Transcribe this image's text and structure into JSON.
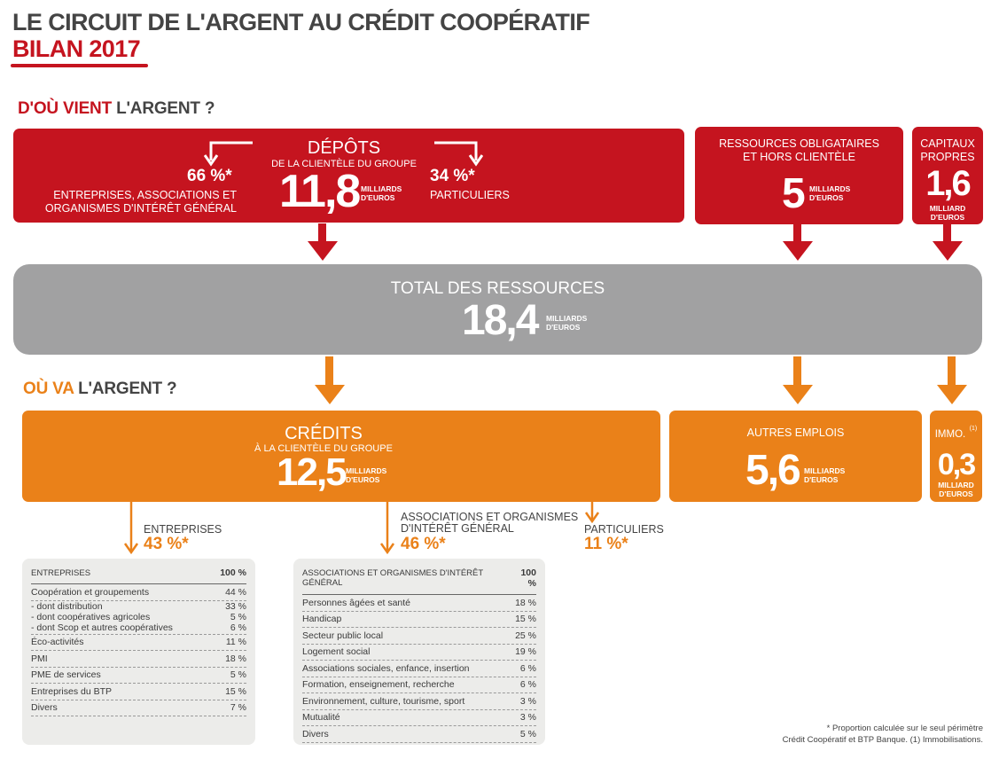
{
  "header": {
    "title": "LE CIRCUIT DE L'ARGENT AU CRÉDIT COOPÉRATIF",
    "subtitle": "BILAN 2017"
  },
  "sources_section": {
    "prefix": "D'OÙ VIENT",
    "suffix": "L'ARGENT ?"
  },
  "uses_section": {
    "prefix": "OÙ VA",
    "suffix": "L'ARGENT ?"
  },
  "deposits": {
    "title": "DÉPÔTS",
    "subtitle": "DE LA CLIENTÈLE DU GROUPE",
    "value": "11,8",
    "unit1": "MILLIARDS",
    "unit2": "D'EUROS",
    "left_pct": "66 %*",
    "left_line1": "ENTREPRISES, ASSOCIATIONS ET",
    "left_line2": "ORGANISMES D'INTÉRÊT GÉNÉRAL",
    "right_pct": "34 %*",
    "right_label": "PARTICULIERS"
  },
  "bond_resources": {
    "line1": "RESSOURCES OBLIGATAIRES",
    "line2": "ET HORS CLIENTÈLE",
    "value": "5",
    "unit1": "MILLIARDS",
    "unit2": "D'EUROS"
  },
  "equity": {
    "line1": "CAPITAUX",
    "line2": "PROPRES",
    "value": "1,6",
    "unit1": "MILLIARD",
    "unit2": "D'EUROS"
  },
  "total": {
    "label": "TOTAL DES RESSOURCES",
    "value": "18,4",
    "unit1": "MILLIARDS",
    "unit2": "D'EUROS"
  },
  "credits": {
    "title": "CRÉDITS",
    "subtitle": "À LA CLIENTÈLE DU GROUPE",
    "value": "12,5",
    "unit1": "MILLIARDS",
    "unit2": "D'EUROS"
  },
  "other_uses": {
    "label": "AUTRES EMPLOIS",
    "value": "5,6",
    "unit1": "MILLIARDS",
    "unit2": "D'EUROS"
  },
  "fixed_assets": {
    "label": "IMMO.",
    "note": "(1)",
    "value": "0,3",
    "unit1": "MILLIARD",
    "unit2": "D'EUROS"
  },
  "credit_split": {
    "enterprises_label": "ENTREPRISES",
    "enterprises_pct": "43 %*",
    "assoc_line1": "ASSOCIATIONS ET ORGANISMES",
    "assoc_line2": "D'INTÉRÊT GÉNÉRAL",
    "assoc_pct": "46 %*",
    "individuals_label": "PARTICULIERS",
    "individuals_pct": "11 %*"
  },
  "table_enterprises": {
    "header": "ENTREPRISES",
    "header_value": "100 %",
    "rows": [
      {
        "label": "Coopération et groupements",
        "value": "44 %"
      },
      {
        "label": "- dont distribution",
        "value": "33 %"
      },
      {
        "label": "- dont coopératives agricoles",
        "value": "5 %"
      },
      {
        "label": "- dont Scop et autres coopératives",
        "value": "6 %"
      },
      {
        "label": "Éco-activités",
        "value": "11 %"
      },
      {
        "label": "PMI",
        "value": "18 %"
      },
      {
        "label": "PME de services",
        "value": "5 %"
      },
      {
        "label": "Entreprises du BTP",
        "value": "15 %"
      },
      {
        "label": "Divers",
        "value": "7 %"
      }
    ]
  },
  "table_associations": {
    "header": "ASSOCIATIONS ET ORGANISMES D'INTÉRÊT GÉNÉRAL",
    "header_value": "100 %",
    "rows": [
      {
        "label": "Personnes âgées et santé",
        "value": "18 %"
      },
      {
        "label": "Handicap",
        "value": "15 %"
      },
      {
        "label": "Secteur public local",
        "value": "25 %"
      },
      {
        "label": "Logement social",
        "value": "19 %"
      },
      {
        "label": "Associations sociales, enfance, insertion",
        "value": "6 %"
      },
      {
        "label": "Formation, enseignement, recherche",
        "value": "6 %"
      },
      {
        "label": "Environnement, culture, tourisme, sport",
        "value": "3 %"
      },
      {
        "label": "Mutualité",
        "value": "3 %"
      },
      {
        "label": "Divers",
        "value": "5 %"
      }
    ]
  },
  "footnote": {
    "line1": "* Proportion calculée sur le seul périmètre",
    "line2": "Crédit Coopératif et BTP Banque. (1) Immobilisations."
  },
  "colors": {
    "red": "#c5141f",
    "gray": "#a1a1a2",
    "orange": "#ea8119"
  }
}
